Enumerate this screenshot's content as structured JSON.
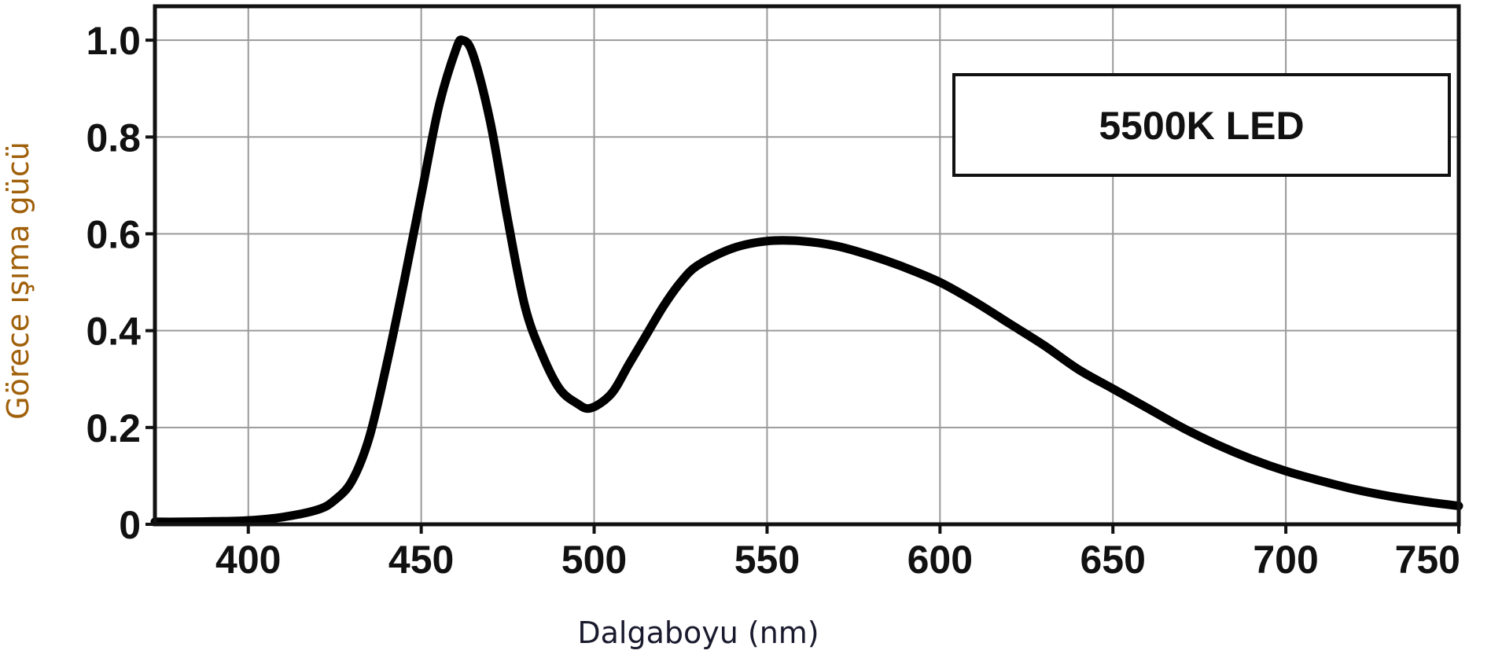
{
  "chart_data": {
    "type": "line",
    "xlabel": "Dalgaboyu (nm)",
    "ylabel": "Görece ışıma gücü",
    "xlim": [
      373,
      750
    ],
    "ylim": [
      0,
      1.07
    ],
    "x_ticks": [
      400,
      450,
      500,
      550,
      600,
      650,
      700,
      750
    ],
    "x_tick_labels": [
      "400",
      "450",
      "500",
      "550",
      "600",
      "650",
      "700",
      "750"
    ],
    "y_ticks": [
      0,
      0.2,
      0.4,
      0.6,
      0.8,
      1.0
    ],
    "y_tick_labels": [
      "0",
      "0.2",
      "0.4",
      "0.6",
      "0.8",
      "1.0"
    ],
    "grid": true,
    "legend_position": "top-right",
    "series": [
      {
        "name": "5500K LED",
        "color": "#000000",
        "x": [
          373,
          380,
          390,
          400,
          410,
          420,
          425,
          430,
          435,
          440,
          445,
          450,
          455,
          460,
          462,
          465,
          470,
          475,
          480,
          485,
          490,
          495,
          499,
          505,
          510,
          515,
          520,
          525,
          530,
          540,
          550,
          560,
          570,
          580,
          590,
          600,
          610,
          620,
          630,
          640,
          650,
          660,
          670,
          680,
          690,
          700,
          710,
          720,
          730,
          740,
          750
        ],
        "y": [
          0.005,
          0.005,
          0.006,
          0.008,
          0.015,
          0.03,
          0.05,
          0.09,
          0.18,
          0.33,
          0.5,
          0.68,
          0.86,
          0.98,
          1.0,
          0.97,
          0.83,
          0.63,
          0.45,
          0.35,
          0.28,
          0.25,
          0.24,
          0.27,
          0.33,
          0.39,
          0.45,
          0.5,
          0.535,
          0.57,
          0.585,
          0.585,
          0.575,
          0.555,
          0.53,
          0.5,
          0.46,
          0.415,
          0.37,
          0.32,
          0.28,
          0.24,
          0.2,
          0.165,
          0.135,
          0.11,
          0.09,
          0.072,
          0.058,
          0.047,
          0.038
        ]
      }
    ]
  }
}
